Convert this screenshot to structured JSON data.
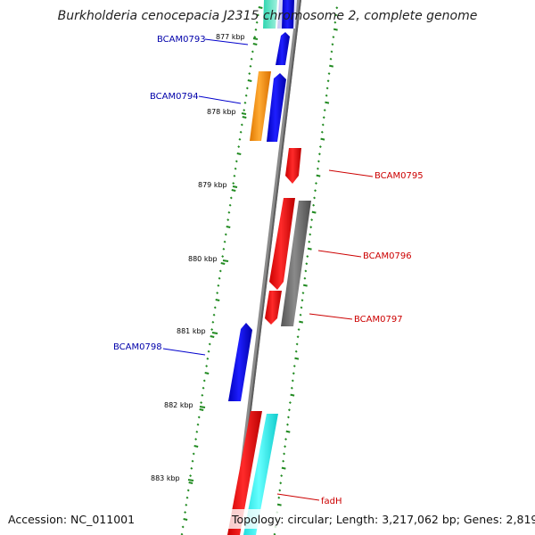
{
  "title": "Burkholderia cenocepacia J2315 chromosome 2, complete genome",
  "footer": {
    "accession": "Accession: NC_011001",
    "topology": "Topology: circular; Length: 3,217,062 bp; Genes: 2,819"
  },
  "kbp_labels": [
    "877 kbp",
    "878 kbp",
    "879 kbp",
    "880 kbp",
    "881 kbp",
    "882 kbp",
    "883 kbp"
  ],
  "gene_labels": {
    "bcam0793": "BCAM0793",
    "bcam0794": "BCAM0794",
    "bcam0795": "BCAM0795",
    "bcam0796": "BCAM0796",
    "bcam0797": "BCAM0797",
    "bcam0798": "BCAM0798",
    "fadh": "fadH"
  },
  "colors": {
    "forward_gene": "#0000ff",
    "reverse_gene": "#ff0000",
    "orange_gene": "#ff9900",
    "gray_gene": "#777777",
    "cyan_gene": "#00ffff",
    "backbone": "#888888",
    "tick": "#228b22",
    "forward_label": "#0000aa",
    "reverse_label": "#cc0000"
  }
}
